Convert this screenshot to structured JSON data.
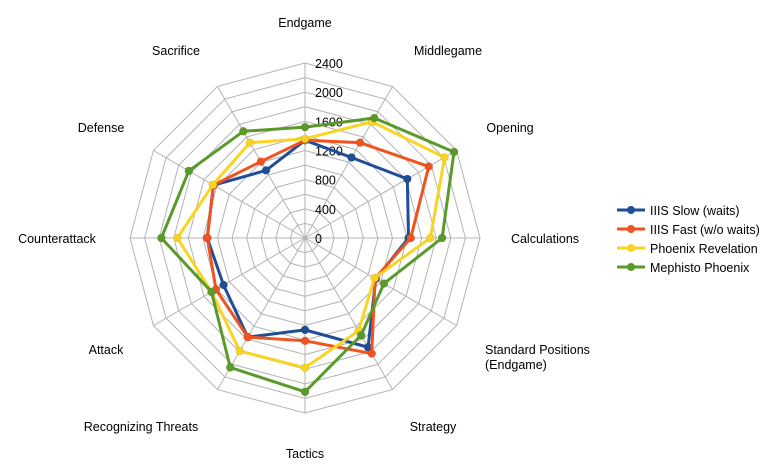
{
  "chart_data": {
    "type": "radar",
    "title": "",
    "axes": [
      "Endgame",
      "Middlegame",
      "Opening",
      "Calculations",
      "Standard Positions (Endgame)",
      "Strategy",
      "Tactics",
      "Recognizing Threats",
      "Attack",
      "Counterattack",
      "Defense",
      "Sacrifice"
    ],
    "axis_label_lines": [
      [
        "Endgame"
      ],
      [
        "Middlegame"
      ],
      [
        "Opening"
      ],
      [
        "Calculations"
      ],
      [
        "Standard Positions",
        "(Endgame)"
      ],
      [
        "Strategy"
      ],
      [
        "Tactics"
      ],
      [
        "Recognizing Threats"
      ],
      [
        "Attack"
      ],
      [
        "Counterattack"
      ],
      [
        "Defense"
      ],
      [
        "Sacrifice"
      ]
    ],
    "rlim": [
      0,
      2400
    ],
    "ticks": [
      "0",
      "400",
      "800",
      "1200",
      "1600",
      "2000",
      "2400"
    ],
    "tick_values": [
      0,
      400,
      800,
      1200,
      1600,
      2000,
      2400
    ],
    "grid_step": 200,
    "grid": true,
    "legend_position": "right",
    "series": [
      {
        "name": "IIIS Slow (waits)",
        "color": "#1f4e96",
        "values": [
          1340,
          1275,
          1620,
          1420,
          1120,
          1730,
          1260,
          1570,
          1290,
          1340,
          1450,
          1070
        ]
      },
      {
        "name": "IIIS Fast (w/o waits)",
        "color": "#f0531f",
        "values": [
          1340,
          1510,
          1960,
          1450,
          1110,
          1830,
          1410,
          1570,
          1410,
          1340,
          1450,
          1210
        ]
      },
      {
        "name": "Phoenix Revelation",
        "color": "#f9d423",
        "values": [
          1360,
          1840,
          2210,
          1720,
          1100,
          1470,
          1780,
          1790,
          1480,
          1750,
          1460,
          1510
        ]
      },
      {
        "name": "Mephisto Phoenix",
        "color": "#5a9a2a",
        "values": [
          1520,
          1900,
          2360,
          1880,
          1250,
          1540,
          2110,
          2050,
          1480,
          1970,
          1840,
          1690
        ]
      }
    ]
  }
}
